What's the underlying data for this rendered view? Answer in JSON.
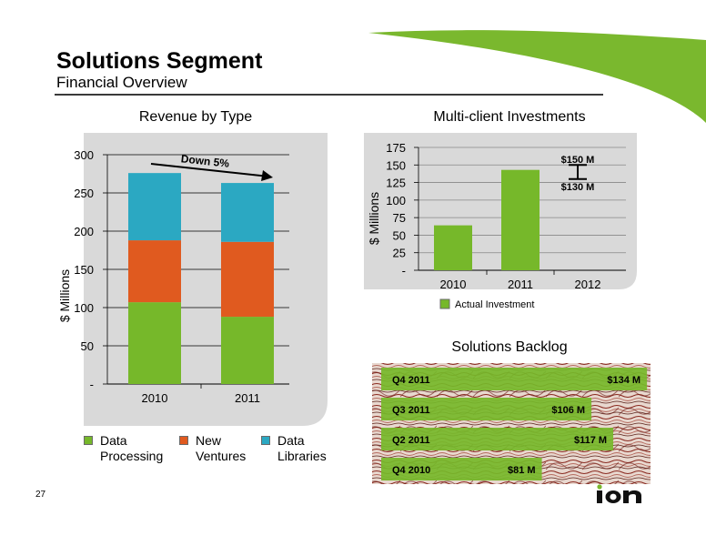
{
  "header": {
    "title": "Solutions Segment",
    "subtitle": "Financial Overview"
  },
  "colors": {
    "data_processing": "#76b82a",
    "new_ventures": "#e05a1f",
    "data_libraries": "#2ba8c2",
    "panel": "#d9d9d9",
    "accent": "#7ab82e"
  },
  "revenue_panel": {
    "title": "Revenue by Type",
    "annotation": "Down 5%",
    "legend": [
      {
        "line1": "Data",
        "line2": "Processing",
        "color_key": "data_processing"
      },
      {
        "line1": "New",
        "line2": "Ventures",
        "color_key": "new_ventures"
      },
      {
        "line1": "Data",
        "line2": "Libraries",
        "color_key": "data_libraries"
      }
    ]
  },
  "multiclient_panel": {
    "title": "Multi-client Investments",
    "label_high": "$150 M",
    "label_low": "$130 M",
    "legend": "Actual Investment"
  },
  "backlog_panel": {
    "title": "Solutions Backlog",
    "rows": [
      {
        "period": "Q4 2011",
        "amount": "$134 M",
        "value": 134
      },
      {
        "period": "Q3 2011",
        "amount": "$106 M",
        "value": 106
      },
      {
        "period": "Q2 2011",
        "amount": "$117 M",
        "value": 117
      },
      {
        "period": "Q4 2010",
        "amount": "$81 M",
        "value": 81
      }
    ]
  },
  "footer": {
    "page_number": "27",
    "logo_text": "ion"
  },
  "chart_data": [
    {
      "type": "bar",
      "stacked": true,
      "title": "Revenue by Type",
      "ylabel": "$ Millions",
      "categories": [
        "2010",
        "2011"
      ],
      "series": [
        {
          "name": "Data Processing",
          "values": [
            107,
            88
          ]
        },
        {
          "name": "New Ventures",
          "values": [
            81,
            98
          ]
        },
        {
          "name": "Data Libraries",
          "values": [
            88,
            77
          ]
        }
      ],
      "ylim": [
        0,
        300
      ],
      "yticks": [
        "-",
        "50",
        "100",
        "150",
        "200",
        "250",
        "300"
      ],
      "annotation": "Down 5%",
      "grid": true,
      "legend_position": "bottom"
    },
    {
      "type": "bar",
      "title": "Multi-client Investments",
      "ylabel": "$ Millions",
      "categories": [
        "2010",
        "2011",
        "2012"
      ],
      "series": [
        {
          "name": "Actual Investment",
          "values": [
            64,
            143,
            null
          ]
        }
      ],
      "ylim": [
        0,
        175
      ],
      "yticks": [
        "-",
        "25",
        "50",
        "75",
        "100",
        "125",
        "150",
        "175"
      ],
      "range_2012": {
        "low": 130,
        "high": 150,
        "label_low": "$130 M",
        "label_high": "$150 M"
      },
      "grid": true,
      "legend_position": "bottom"
    },
    {
      "type": "bar",
      "orientation": "horizontal",
      "title": "Solutions Backlog",
      "categories": [
        "Q4 2011",
        "Q3 2011",
        "Q2 2011",
        "Q4 2010"
      ],
      "values": [
        134,
        106,
        117,
        81
      ],
      "labels": [
        "$134 M",
        "$106 M",
        "$117 M",
        "$81 M"
      ]
    }
  ]
}
